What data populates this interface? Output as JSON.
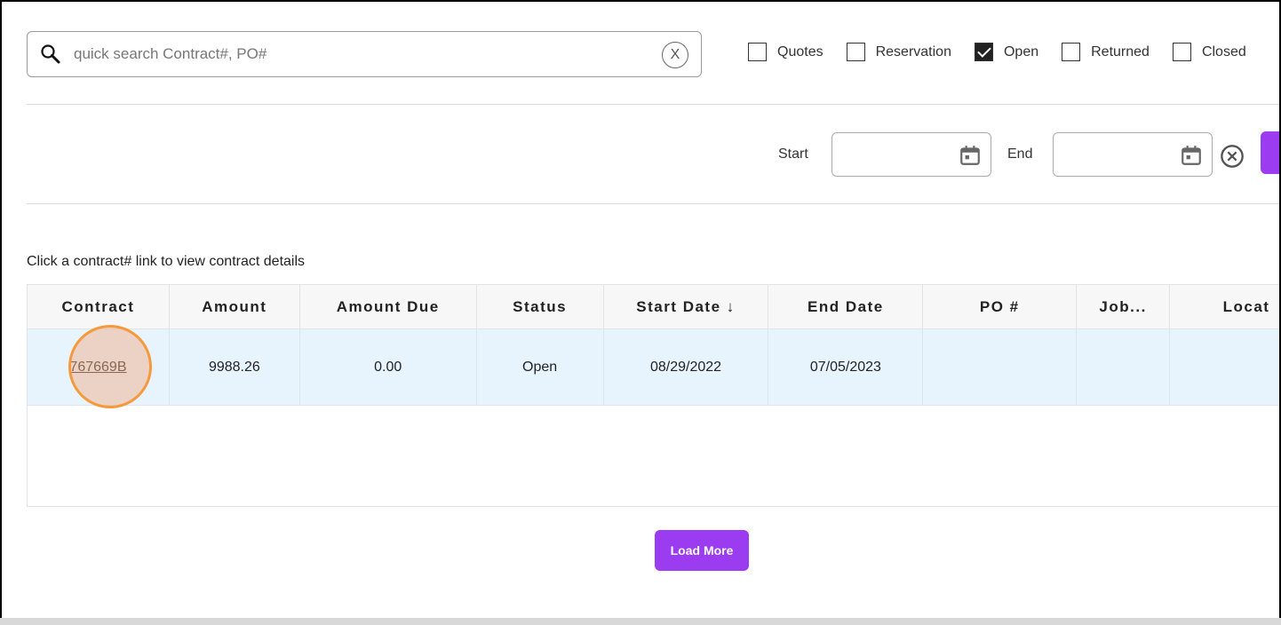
{
  "search": {
    "placeholder": "quick search Contract#, PO#",
    "clear_label": "X"
  },
  "filters": [
    {
      "label": "Quotes",
      "checked": false
    },
    {
      "label": "Reservation",
      "checked": false
    },
    {
      "label": "Open",
      "checked": true
    },
    {
      "label": "Returned",
      "checked": false
    },
    {
      "label": "Closed",
      "checked": false
    }
  ],
  "dates": {
    "start_label": "Start",
    "end_label": "End",
    "start_value": "",
    "end_value": ""
  },
  "hint": "Click a contract# link to view contract details",
  "table": {
    "columns": [
      "Contract",
      "Amount",
      "Amount Due",
      "Status",
      "Start Date ↓",
      "End Date",
      "PO #",
      "Job...",
      "Locat"
    ],
    "rows": [
      [
        "767669B",
        "9988.26",
        "0.00",
        "Open",
        "08/29/2022",
        "07/05/2023",
        "",
        "",
        ""
      ]
    ]
  },
  "load_more": "Load More",
  "colors": {
    "accent": "#9b3cf0",
    "row_bg": "#e8f4fd",
    "highlight": "#f59a3c"
  }
}
